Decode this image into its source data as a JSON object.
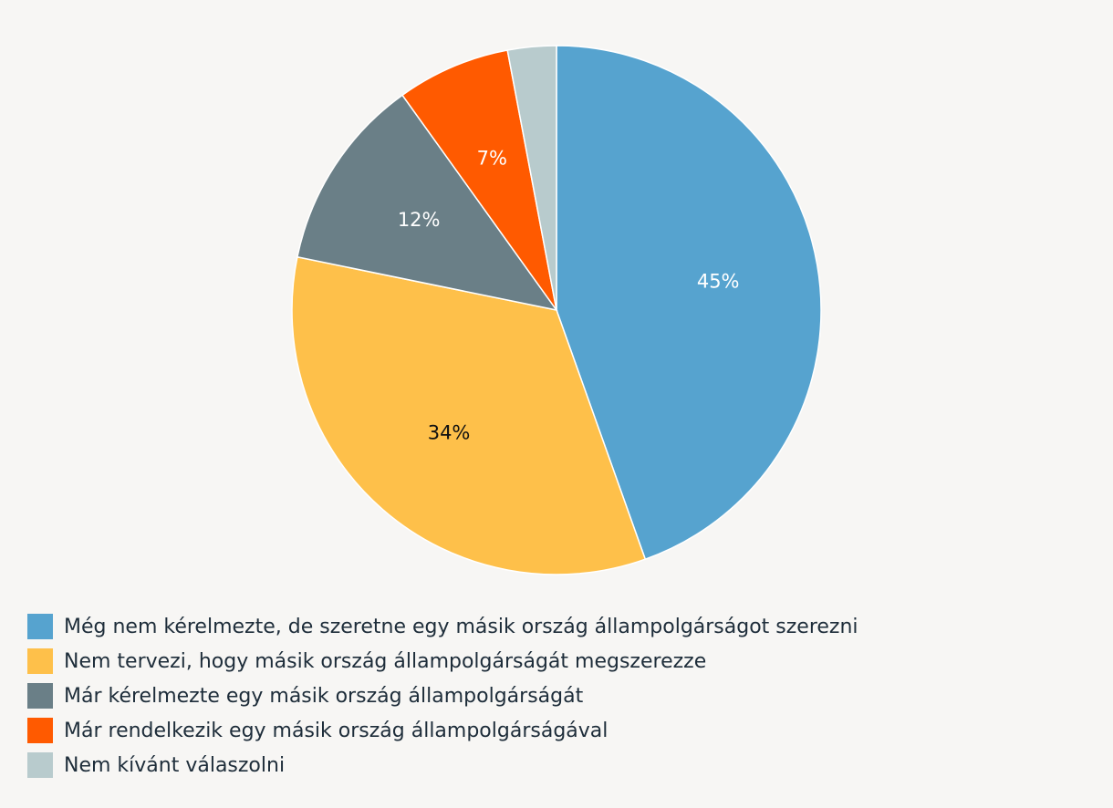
{
  "chart_data": {
    "type": "pie",
    "slices": [
      {
        "name": "Még nem kérelmezte, de szeretne egy másik ország állampolgárságot szerezni",
        "value": 45,
        "label": "45%",
        "color": "#56a3cf",
        "label_color": "#ffffff"
      },
      {
        "name": "Nem tervezi, hogy másik ország állampolgárságát megszerezze",
        "value": 34,
        "label": "34%",
        "color": "#fec04a",
        "label_color": "#111111"
      },
      {
        "name": "Már kérelmezte egy másik ország állampolgárságát",
        "value": 12,
        "label": "12%",
        "color": "#6a7f87",
        "label_color": "#ffffff"
      },
      {
        "name": "Már rendelkezik egy másik ország állampolgárságával",
        "value": 7,
        "label": "7%",
        "color": "#ff5a00",
        "label_color": "#ffffff"
      },
      {
        "name": "Nem kívánt válaszolni",
        "value": 3,
        "label": "",
        "color": "#b8cbcd",
        "label_color": "#ffffff"
      }
    ],
    "legend_position": "bottom-left"
  }
}
